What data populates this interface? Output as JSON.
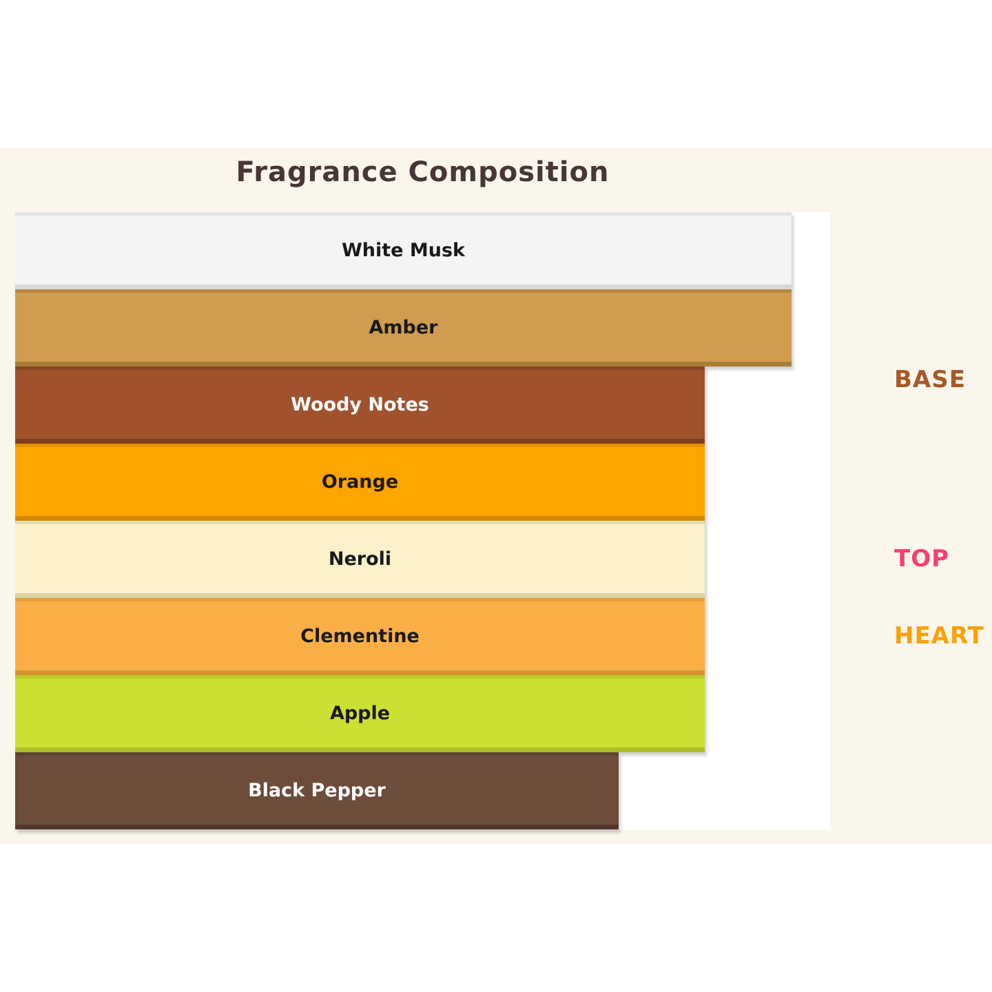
{
  "title": {
    "text": "Fragrance Composition",
    "color": "#473635"
  },
  "background": {
    "page": "#FFFFFF",
    "band": "#FBF6EC",
    "plot": "#FFFFFF"
  },
  "bars": [
    {
      "label": "White Musk",
      "value": 45,
      "fill": "#F4F4F4",
      "bevel_top": "#E3E3E5",
      "bevel_bottom": "#D8D8DA",
      "text_color": "#1A1A1A"
    },
    {
      "label": "Amber",
      "value": 45,
      "fill": "#D09C4F",
      "bevel_top": "#BA8A3F",
      "bevel_bottom": "#A87D36",
      "text_color": "#1A1A1A"
    },
    {
      "label": "Woody Notes",
      "value": 40,
      "fill": "#A0522D",
      "bevel_top": "#8A4524",
      "bevel_bottom": "#7C3D1F",
      "text_color": "#FFFFFF"
    },
    {
      "label": "Orange",
      "value": 40,
      "fill": "#FFA500",
      "bevel_top": "#E59400",
      "bevel_bottom": "#D48900",
      "text_color": "#1A1A1A"
    },
    {
      "label": "Neroli",
      "value": 40,
      "fill": "#FBF2CB",
      "bevel_top": "#E5DCB2",
      "bevel_bottom": "#DCD2A4",
      "text_color": "#1A1A1A"
    },
    {
      "label": "Clementine",
      "value": 40,
      "fill": "#FAAF46",
      "bevel_top": "#E39E3C",
      "bevel_bottom": "#D5942F",
      "text_color": "#1A1A1A"
    },
    {
      "label": "Apple",
      "value": 40,
      "fill": "#CCE034",
      "bevel_top": "#BACD2D",
      "bevel_bottom": "#ACBE29",
      "text_color": "#1A1A1A"
    },
    {
      "label": "Black Pepper",
      "value": 35,
      "fill": "#6D4C3B",
      "bevel_top": "#5C4232",
      "bevel_bottom": "#52392B",
      "text_color": "#FFFFFF"
    }
  ],
  "side_labels": [
    {
      "text": "BASE",
      "color": "#A45A28"
    },
    {
      "text": "TOP",
      "color": "#F7406E"
    },
    {
      "text": "HEART",
      "color": "#F9A109"
    }
  ],
  "chart_data": {
    "type": "bar",
    "orientation": "horizontal",
    "title": "Fragrance Composition",
    "categories": [
      "White Musk",
      "Amber",
      "Woody Notes",
      "Orange",
      "Neroli",
      "Clementine",
      "Apple",
      "Black Pepper"
    ],
    "values": [
      45,
      45,
      40,
      40,
      40,
      40,
      40,
      35
    ],
    "value_note": "relative bar widths estimated from pixels; no numeric axis shown",
    "xlim": [
      0,
      47.25
    ],
    "xlabel": "",
    "ylabel": "",
    "grid": false,
    "legend": false,
    "bar_colors": [
      "#F4F4F4",
      "#D09C4F",
      "#A0522D",
      "#FFA500",
      "#FBF2CB",
      "#FAAF46",
      "#CCE034",
      "#6D4C3B"
    ],
    "annotations": [
      {
        "text": "BASE",
        "color": "#A45A28",
        "aligned_row": "Woody Notes"
      },
      {
        "text": "TOP",
        "color": "#F7406E",
        "aligned_row": "Neroli"
      },
      {
        "text": "HEART",
        "color": "#F9A109",
        "aligned_row": "Clementine"
      }
    ]
  }
}
